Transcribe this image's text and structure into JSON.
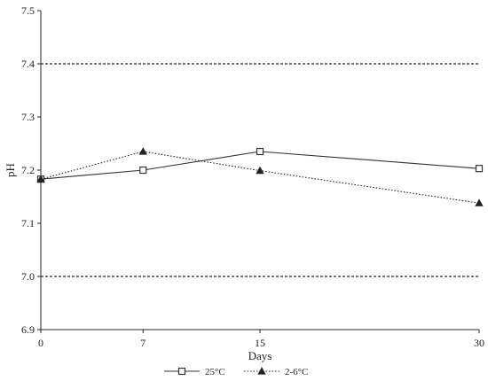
{
  "chart_data": {
    "type": "line",
    "title": "",
    "xlabel": "Days",
    "ylabel": "pH",
    "x": [
      0,
      7,
      15,
      30
    ],
    "x_tick_labels": [
      "0",
      "7",
      "15",
      "30"
    ],
    "ylim": [
      6.9,
      7.5
    ],
    "y_ticks": [
      6.9,
      7.0,
      7.1,
      7.2,
      7.3,
      7.4,
      7.5
    ],
    "y_tick_labels": [
      "6.9",
      "7.0",
      "7.1",
      "7.2",
      "7.3",
      "7.4",
      "7.5"
    ],
    "grid": false,
    "reference_lines": [
      7.0,
      7.4
    ],
    "reference_line_style": "dashed",
    "legend_position": "bottom-center",
    "series": [
      {
        "name": "25°C",
        "values": [
          7.183,
          7.2,
          7.235,
          7.203
        ],
        "marker": "open-square",
        "line_style": "solid",
        "color": "#333333"
      },
      {
        "name": "2-6°C",
        "values": [
          7.183,
          7.235,
          7.199,
          7.138
        ],
        "marker": "filled-triangle",
        "line_style": "dotted",
        "color": "#222222"
      }
    ]
  }
}
